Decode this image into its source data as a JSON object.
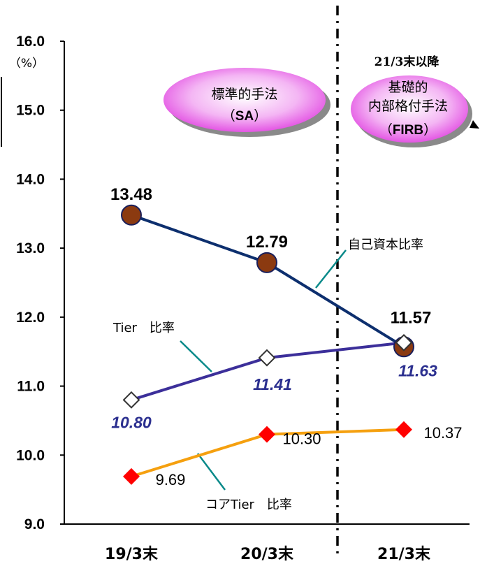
{
  "chart_data": {
    "type": "line",
    "unit": "（%）",
    "categories": [
      "19/3末",
      "20/3末",
      "21/3末"
    ],
    "ylim": [
      9.0,
      16.0
    ],
    "yticks": [
      "9.0",
      "10.0",
      "11.0",
      "12.0",
      "13.0",
      "14.0",
      "15.0",
      "16.0"
    ],
    "grid": false,
    "series": [
      {
        "name": "自己資本比率",
        "values": [
          13.48,
          12.79,
          11.57
        ],
        "labels": [
          "13.48",
          "12.79",
          "11.57"
        ],
        "color": "#0d2f6e",
        "marker_color": "#8b3a10"
      },
      {
        "name": "Tier　比率",
        "values": [
          10.8,
          11.41,
          11.63
        ],
        "labels": [
          "10.80",
          "11.41",
          "11.63"
        ],
        "color": "#3c2f9a",
        "marker_color": "#ffffff"
      },
      {
        "name": "コアTier　比率",
        "values": [
          9.69,
          10.3,
          10.37
        ],
        "labels": [
          "9.69",
          "10.30",
          "10.37"
        ],
        "color": "#f5a00f",
        "marker_color": "#ff0000"
      }
    ],
    "annotations": {
      "note_top": "21/3末以降",
      "bubble_sa_line1": "標準的手法",
      "bubble_sa_line2_pre": "（",
      "bubble_sa_line2_bold": "SA",
      "bubble_sa_line2_post": "）",
      "bubble_firb_line1": "基礎的",
      "bubble_firb_line2": "内部格付手法",
      "bubble_firb_line3_pre": "（",
      "bubble_firb_line3_bold": "FIRB",
      "bubble_firb_line3_post": "）"
    },
    "colors": {
      "bubble_fill": "#f07af0",
      "bubble_shadow": "#8a8a8a",
      "divider": "#000000"
    }
  }
}
